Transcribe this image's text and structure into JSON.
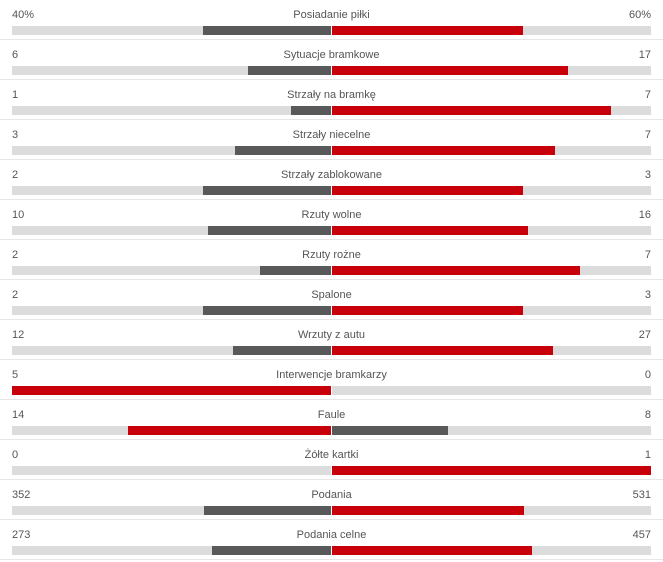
{
  "colors": {
    "leader": "#c8000a",
    "trailer": "#595959",
    "track": "#dcdcdc"
  },
  "stats": [
    {
      "name": "Posiadanie piłki",
      "home": "40%",
      "away": "60%",
      "home_fraction": 0.4,
      "away_fraction": 0.6
    },
    {
      "name": "Sytuacje bramkowe",
      "home": "6",
      "away": "17",
      "home_fraction": 0.26,
      "away_fraction": 0.74
    },
    {
      "name": "Strzały na bramkę",
      "home": "1",
      "away": "7",
      "home_fraction": 0.125,
      "away_fraction": 0.875
    },
    {
      "name": "Strzały niecelne",
      "home": "3",
      "away": "7",
      "home_fraction": 0.3,
      "away_fraction": 0.7
    },
    {
      "name": "Strzały zablokowane",
      "home": "2",
      "away": "3",
      "home_fraction": 0.4,
      "away_fraction": 0.6
    },
    {
      "name": "Rzuty wolne",
      "home": "10",
      "away": "16",
      "home_fraction": 0.385,
      "away_fraction": 0.615
    },
    {
      "name": "Rzuty rożne",
      "home": "2",
      "away": "7",
      "home_fraction": 0.222,
      "away_fraction": 0.778
    },
    {
      "name": "Spalone",
      "home": "2",
      "away": "3",
      "home_fraction": 0.4,
      "away_fraction": 0.6
    },
    {
      "name": "Wrzuty z autu",
      "home": "12",
      "away": "27",
      "home_fraction": 0.308,
      "away_fraction": 0.692
    },
    {
      "name": "Interwencje bramkarzy",
      "home": "5",
      "away": "0",
      "home_fraction": 1.0,
      "away_fraction": 0.0
    },
    {
      "name": "Faule",
      "home": "14",
      "away": "8",
      "home_fraction": 0.636,
      "away_fraction": 0.364
    },
    {
      "name": "Żółte kartki",
      "home": "0",
      "away": "1",
      "home_fraction": 0.0,
      "away_fraction": 1.0
    },
    {
      "name": "Podania",
      "home": "352",
      "away": "531",
      "home_fraction": 0.399,
      "away_fraction": 0.601
    },
    {
      "name": "Podania celne",
      "home": "273",
      "away": "457",
      "home_fraction": 0.374,
      "away_fraction": 0.626
    }
  ]
}
